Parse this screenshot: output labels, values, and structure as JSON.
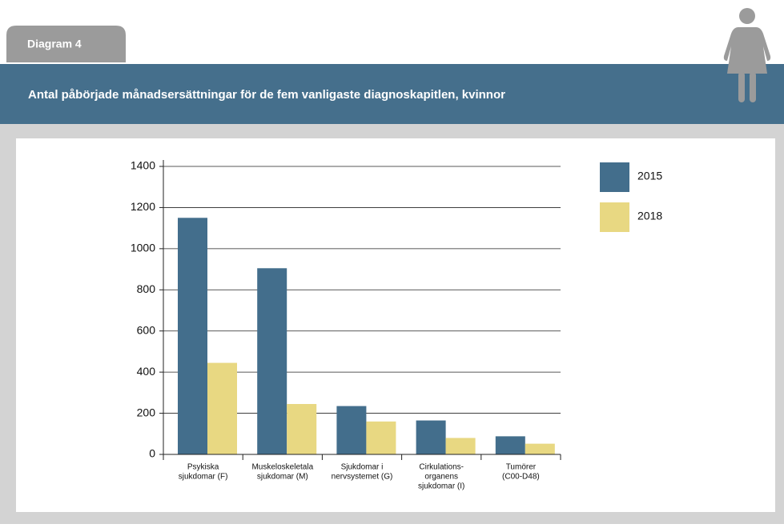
{
  "tab": "Diagram 4",
  "chart_data": {
    "type": "bar",
    "title": "Antal påbörjade månadsersättningar för de fem vanligaste diagnoskapitlen, kvinnor",
    "categories": [
      [
        "Psykiska",
        "sjukdomar (F)"
      ],
      [
        "Muskeloskeletala",
        "sjukdomar (M)"
      ],
      [
        "Sjukdomar i",
        "nervsystemet (G)"
      ],
      [
        "Cirkulations-",
        "organens",
        "sjukdomar (I)"
      ],
      [
        "Tumörer",
        "(C00-D48)"
      ]
    ],
    "series": [
      {
        "name": "2015",
        "color": "#436e8c",
        "values": [
          1150,
          905,
          235,
          165,
          88
        ]
      },
      {
        "name": "2018",
        "color": "#e8d882",
        "values": [
          445,
          245,
          160,
          80,
          52
        ]
      }
    ],
    "ylim": [
      0,
      1400
    ],
    "yticks": [
      0,
      200,
      400,
      600,
      800,
      1000,
      1200,
      1400
    ],
    "grid": true,
    "legend": "right"
  }
}
